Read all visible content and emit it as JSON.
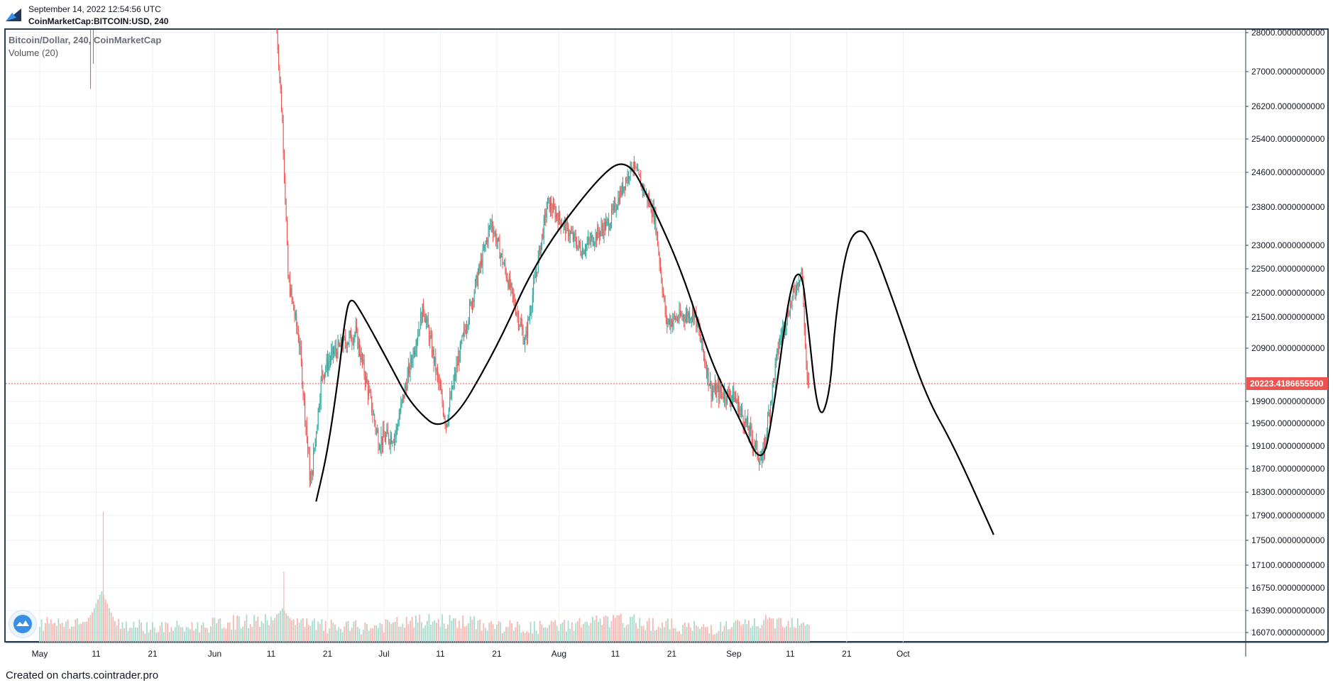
{
  "header": {
    "timestamp": "September 14, 2022 12:54:56 UTC",
    "symbol": "CoinMarketCap:BITCOIN:USD, 240"
  },
  "legend": {
    "title": "Bitcoin/Dollar, 240, CoinMarketCap",
    "volume": "Volume (20)"
  },
  "footer": {
    "text": "Created on charts.cointrader.pro"
  },
  "colors": {
    "up": "#26a69a",
    "down": "#ef5350",
    "volume_up": "#a7dccd",
    "volume_down": "#f5b7b1",
    "drawing": "#000000",
    "grid": "#edf0f3",
    "frame": "#2a3f52"
  },
  "chart_data": {
    "type": "candlestick",
    "title": "Bitcoin/Dollar, 240, CoinMarketCap",
    "y_ticks": [
      "28000.0000000000",
      "27000.0000000000",
      "26200.0000000000",
      "25400.0000000000",
      "24600.0000000000",
      "23800.0000000000",
      "23000.0000000000",
      "22500.0000000000",
      "22000.0000000000",
      "21500.0000000000",
      "20900.0000000000",
      "20223.4186655500",
      "19900.0000000000",
      "19500.0000000000",
      "19100.0000000000",
      "18700.0000000000",
      "18300.0000000000",
      "17900.0000000000",
      "17500.0000000000",
      "17100.0000000000",
      "16750.0000000000",
      "16390.0000000000",
      "16070.0000000000"
    ],
    "x_ticks": [
      "May",
      "11",
      "21",
      "Jun",
      "11",
      "21",
      "Jul",
      "11",
      "21",
      "Aug",
      "11",
      "21",
      "Sep",
      "11",
      "21",
      "Oct"
    ],
    "current_price": "20223.4186655500",
    "price_path": [
      {
        "date": "May 10",
        "close": 28600
      },
      {
        "date": "Jun 12",
        "close": 28000
      },
      {
        "date": "Jun 13",
        "close": 25800
      },
      {
        "date": "Jun 14",
        "close": 22300
      },
      {
        "date": "Jun 16",
        "close": 21000
      },
      {
        "date": "Jun 18",
        "close": 18400
      },
      {
        "date": "Jun 20",
        "close": 20400
      },
      {
        "date": "Jun 22",
        "close": 20800
      },
      {
        "date": "Jun 26",
        "close": 21200
      },
      {
        "date": "Jun 30",
        "close": 19200
      },
      {
        "date": "Jul 3",
        "close": 19300
      },
      {
        "date": "Jul 8",
        "close": 21700
      },
      {
        "date": "Jul 12",
        "close": 19500
      },
      {
        "date": "Jul 14",
        "close": 20600
      },
      {
        "date": "Jul 20",
        "close": 23500
      },
      {
        "date": "Jul 26",
        "close": 21000
      },
      {
        "date": "Jul 30",
        "close": 23900
      },
      {
        "date": "Aug 5",
        "close": 22900
      },
      {
        "date": "Aug 10",
        "close": 23500
      },
      {
        "date": "Aug 14",
        "close": 24800
      },
      {
        "date": "Aug 18",
        "close": 23600
      },
      {
        "date": "Aug 20",
        "close": 21400
      },
      {
        "date": "Aug 25",
        "close": 21600
      },
      {
        "date": "Aug 28",
        "close": 20100
      },
      {
        "date": "Sep 1",
        "close": 20000
      },
      {
        "date": "Sep 6",
        "close": 18800
      },
      {
        "date": "Sep 9",
        "close": 21000
      },
      {
        "date": "Sep 13",
        "close": 22500
      },
      {
        "date": "Sep 14",
        "close": 20200
      }
    ],
    "drawn_path": [
      {
        "date": "Jun 19",
        "price": 18150
      },
      {
        "date": "Jun 21",
        "price": 19000
      },
      {
        "date": "Jun 23",
        "price": 20400
      },
      {
        "date": "Jun 24",
        "price": 21400
      },
      {
        "date": "Jun 25",
        "price": 21950
      },
      {
        "date": "Jun 27",
        "price": 21600
      },
      {
        "date": "Jul 2",
        "price": 20600
      },
      {
        "date": "Jul 6",
        "price": 19800
      },
      {
        "date": "Jul 12",
        "price": 19300
      },
      {
        "date": "Jul 21",
        "price": 20900
      },
      {
        "date": "Jul 28",
        "price": 22700
      },
      {
        "date": "Aug 8",
        "price": 24500
      },
      {
        "date": "Aug 13",
        "price": 24950
      },
      {
        "date": "Aug 17",
        "price": 24000
      },
      {
        "date": "Aug 23",
        "price": 22400
      },
      {
        "date": "Aug 28",
        "price": 20600
      },
      {
        "date": "Sep 2",
        "price": 19600
      },
      {
        "date": "Sep 6",
        "price": 18700
      },
      {
        "date": "Sep 8",
        "price": 19700
      },
      {
        "date": "Sep 11",
        "price": 22200
      },
      {
        "date": "Sep 13",
        "price": 22500
      },
      {
        "date": "Sep 14",
        "price": 21500
      },
      {
        "date": "Sep 16",
        "price": 19500
      },
      {
        "date": "Sep 18",
        "price": 20000
      },
      {
        "date": "Sep 19",
        "price": 21500
      },
      {
        "date": "Sep 21",
        "price": 23000
      },
      {
        "date": "Sep 23",
        "price": 23350
      },
      {
        "date": "Sep 25",
        "price": 23200
      },
      {
        "date": "Sep 30",
        "price": 21600
      },
      {
        "date": "Oct 5",
        "price": 20000
      },
      {
        "date": "Oct 10",
        "price": 19100
      },
      {
        "date": "Oct 17",
        "price": 17600
      }
    ],
    "volume": {
      "name": "Volume (20)",
      "spikes": [
        {
          "date": "May 12",
          "level": 0.92
        },
        {
          "date": "Jun 13",
          "level": 0.5
        }
      ]
    }
  }
}
